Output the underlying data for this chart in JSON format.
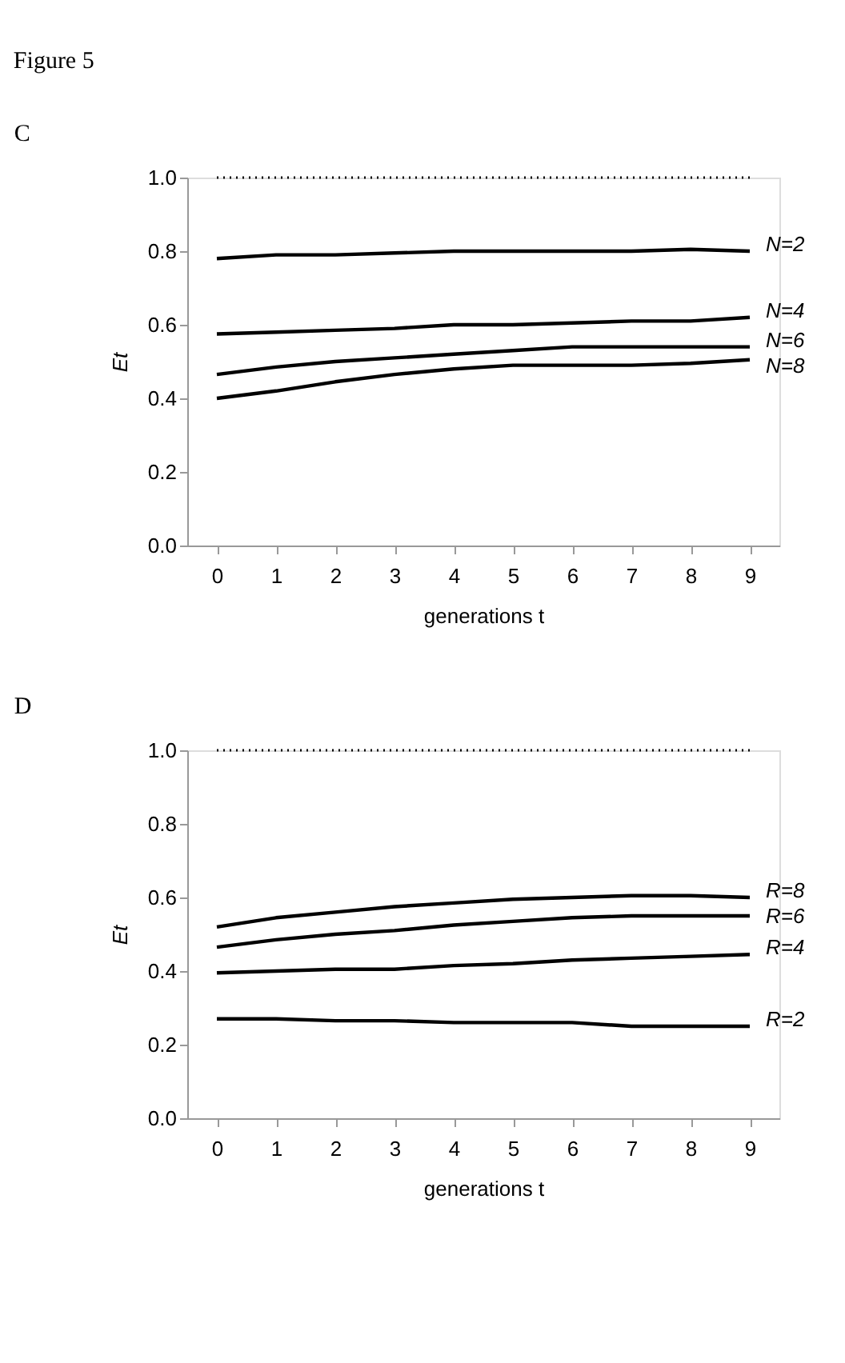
{
  "chart_data": [
    {
      "type": "line",
      "title": "C",
      "annotations": [
        "Figure 5"
      ],
      "xlabel": "generations t",
      "ylabel": "Et",
      "categories": [
        "0",
        "1",
        "2",
        "3",
        "4",
        "5",
        "6",
        "7",
        "8",
        "9"
      ],
      "ylim": [
        0,
        1
      ],
      "yticks": [
        {
          "value": 0,
          "label": "0.0"
        },
        {
          "value": 0.2,
          "label": "0.2"
        },
        {
          "value": 0.4,
          "label": "0.4"
        },
        {
          "value": 0.6,
          "label": "0.6"
        },
        {
          "value": 0.8,
          "label": "0.8"
        },
        {
          "value": 1,
          "label": "1.0"
        }
      ],
      "grid": false,
      "line_style": "solid",
      "marker": "none",
      "ref_lines": [
        {
          "axis": "y",
          "value": 1,
          "line_style": "dotted",
          "color": "#000000"
        }
      ],
      "series": [
        {
          "name": "N=2",
          "color": "#000000",
          "values": [
            0.78,
            0.79,
            0.79,
            0.795,
            0.8,
            0.8,
            0.8,
            0.8,
            0.805,
            0.8
          ]
        },
        {
          "name": "N=4",
          "color": "#000000",
          "values": [
            0.575,
            0.58,
            0.585,
            0.59,
            0.6,
            0.6,
            0.605,
            0.61,
            0.61,
            0.62
          ]
        },
        {
          "name": "N=6",
          "color": "#000000",
          "values": [
            0.465,
            0.485,
            0.5,
            0.51,
            0.52,
            0.53,
            0.54,
            0.54,
            0.54,
            0.54
          ]
        },
        {
          "name": "N=8",
          "color": "#000000",
          "values": [
            0.4,
            0.42,
            0.445,
            0.465,
            0.48,
            0.49,
            0.49,
            0.49,
            0.495,
            0.505
          ]
        }
      ]
    },
    {
      "type": "line",
      "title": "D",
      "xlabel": "generations t",
      "ylabel": "Et",
      "categories": [
        "0",
        "1",
        "2",
        "3",
        "4",
        "5",
        "6",
        "7",
        "8",
        "9"
      ],
      "ylim": [
        0,
        1
      ],
      "yticks": [
        {
          "value": 0,
          "label": "0.0"
        },
        {
          "value": 0.2,
          "label": "0.2"
        },
        {
          "value": 0.4,
          "label": "0.4"
        },
        {
          "value": 0.6,
          "label": "0.6"
        },
        {
          "value": 0.8,
          "label": "0.8"
        },
        {
          "value": 1,
          "label": "1.0"
        }
      ],
      "grid": false,
      "line_style": "solid",
      "marker": "none",
      "ref_lines": [
        {
          "axis": "y",
          "value": 1,
          "line_style": "dotted",
          "color": "#000000"
        }
      ],
      "series": [
        {
          "name": "R=8",
          "color": "#000000",
          "values": [
            0.52,
            0.545,
            0.56,
            0.575,
            0.585,
            0.595,
            0.6,
            0.605,
            0.605,
            0.6
          ]
        },
        {
          "name": "R=6",
          "color": "#000000",
          "values": [
            0.465,
            0.485,
            0.5,
            0.51,
            0.525,
            0.535,
            0.545,
            0.55,
            0.55,
            0.55
          ]
        },
        {
          "name": "R=4",
          "color": "#000000",
          "values": [
            0.395,
            0.4,
            0.405,
            0.405,
            0.415,
            0.42,
            0.43,
            0.435,
            0.44,
            0.445
          ]
        },
        {
          "name": "R=2",
          "color": "#000000",
          "values": [
            0.27,
            0.27,
            0.265,
            0.265,
            0.26,
            0.26,
            0.26,
            0.25,
            0.25,
            0.25
          ]
        }
      ]
    }
  ]
}
